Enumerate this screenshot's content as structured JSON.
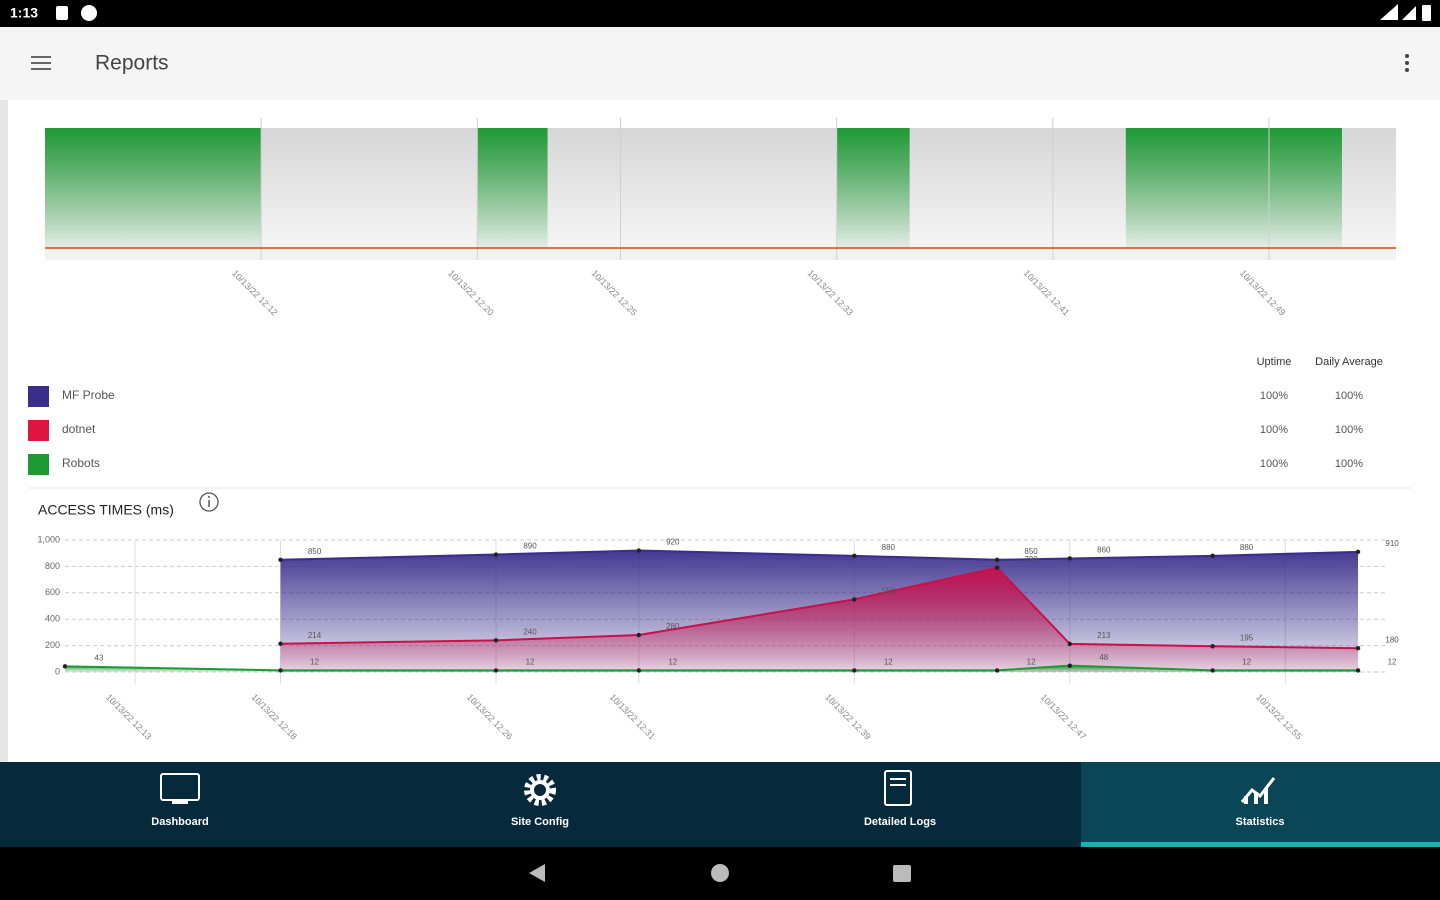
{
  "status_bar": {
    "time": "1:13"
  },
  "app_bar": {
    "title": "Reports"
  },
  "uptime_chart": {
    "type": "timeline",
    "xlim": [
      4,
      54
    ],
    "xticks": [
      {
        "value": 12,
        "label": "10/13/22 12:12"
      },
      {
        "value": 20,
        "label": "10/13/22 12:20"
      },
      {
        "value": 25.3,
        "label": "10/13/22 12:25"
      },
      {
        "value": 33.3,
        "label": "10/13/22 12:33"
      },
      {
        "value": 41.3,
        "label": "10/13/22 12:41"
      },
      {
        "value": 49.3,
        "label": "10/13/22 12:49"
      }
    ],
    "up_periods": [
      [
        4,
        12
      ],
      [
        20,
        22.6
      ],
      [
        33.3,
        36
      ],
      [
        44,
        52
      ]
    ],
    "color": "#1e9a35",
    "baseline_color": "#e0703f"
  },
  "uptime_table": {
    "headers": [
      "Uptime",
      "Daily Average"
    ],
    "rows": [
      {
        "name": "MF Probe",
        "color": "#3a2d8c",
        "uptime": "100%",
        "daily_average": "100%"
      },
      {
        "name": "dotnet",
        "color": "#e0143c",
        "uptime": "100%",
        "daily_average": "100%"
      },
      {
        "name": "Robots",
        "color": "#1e9a35",
        "uptime": "100%",
        "daily_average": "100%"
      }
    ]
  },
  "access_chart": {
    "type": "area",
    "title": "ACCESS TIMES (ms)",
    "x": [
      10,
      18,
      26,
      31.3,
      39.3,
      44.6,
      47.3,
      52.6,
      58
    ],
    "xlim": [
      10,
      59
    ],
    "xticks": [
      {
        "value": 12.6,
        "label": "10/13/22 12:13"
      },
      {
        "value": 18,
        "label": "10/13/22 12:18"
      },
      {
        "value": 26,
        "label": "10/13/22 12:26"
      },
      {
        "value": 31.3,
        "label": "10/13/22 12:31"
      },
      {
        "value": 39.3,
        "label": "10/13/22 12:39"
      },
      {
        "value": 47.3,
        "label": "10/13/22 12:47"
      },
      {
        "value": 55.3,
        "label": "10/13/22 12:55"
      }
    ],
    "ylim": [
      0,
      1000
    ],
    "yticks": [
      0,
      200,
      400,
      600,
      800,
      {
        "value": 1000,
        "label": "1,000"
      }
    ],
    "grid": true,
    "series": [
      {
        "name": "MF Probe",
        "color": "#3a2d8c",
        "values": [
          null,
          850,
          890,
          920,
          880,
          850,
          860,
          880,
          910
        ]
      },
      {
        "name": "dotnet",
        "color": "#c8104a",
        "values": [
          null,
          214,
          240,
          280,
          550,
          790,
          213,
          195,
          180
        ]
      },
      {
        "name": "Robots",
        "color": "#1e9a35",
        "values": [
          43,
          12,
          12,
          12,
          12,
          12,
          48,
          12,
          12
        ]
      }
    ]
  },
  "bottom_nav": {
    "items": [
      "Dashboard",
      "Site Config",
      "Detailed Logs",
      "Statistics"
    ],
    "selected": 3
  }
}
